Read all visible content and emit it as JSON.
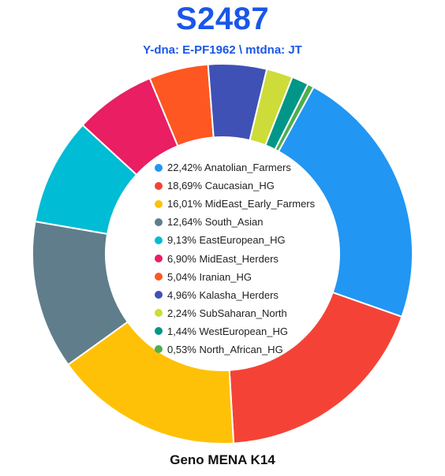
{
  "header": {
    "title": "S2487",
    "subtitle": "Y-dna: E-PF1962 \\ mtdna: JT"
  },
  "footer": {
    "caption": "Geno MENA K14"
  },
  "chart_data": {
    "type": "pie",
    "donut": true,
    "legend_position": "center",
    "categories": [
      "Anatolian_Farmers",
      "Caucasian_HG",
      "MidEast_Early_Farmers",
      "South_Asian",
      "EastEuropean_HG",
      "MidEast_Herders",
      "Iranian_HG",
      "Kalasha_Herders",
      "SubSaharan_North",
      "WestEuropean_HG",
      "North_African_HG"
    ],
    "values": [
      22.42,
      18.69,
      16.01,
      12.64,
      9.13,
      6.9,
      5.04,
      4.96,
      2.24,
      1.44,
      0.53
    ],
    "labels": [
      "22,42% Anatolian_Farmers",
      "18,69% Caucasian_HG",
      "16,01% MidEast_Early_Farmers",
      "12,64% South_Asian",
      "9,13% EastEuropean_HG",
      "6,90% MidEast_Herders",
      "5,04% Iranian_HG",
      "4,96% Kalasha_Herders",
      "2,24% SubSaharan_North",
      "1,44% WestEuropean_HG",
      "0,53% North_African_HG"
    ],
    "colors": [
      "#2196f3",
      "#f44336",
      "#ffc107",
      "#607d8b",
      "#00bcd4",
      "#e91e63",
      "#ff5722",
      "#3f51b5",
      "#cddc39",
      "#009688",
      "#4caf50"
    ]
  }
}
